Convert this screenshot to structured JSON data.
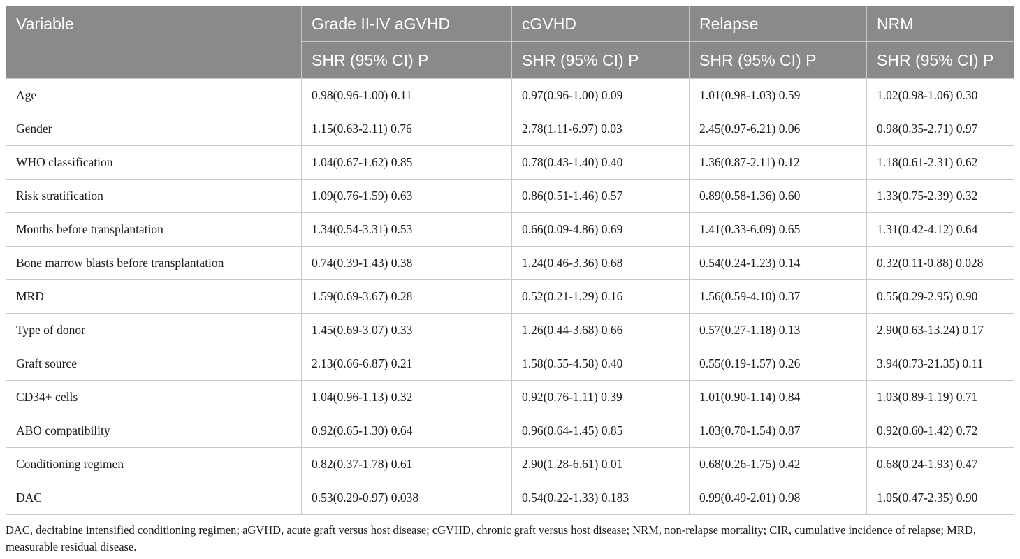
{
  "table": {
    "headers": {
      "variable": "Variable",
      "groups": [
        "Grade II-IV aGVHD",
        "cGVHD",
        "Relapse",
        "NRM"
      ],
      "sub": [
        "SHR (95% CI) P",
        "SHR (95% CI) P",
        "SHR (95% CI) P",
        "SHR (95% CI) P"
      ]
    },
    "rows": [
      [
        "Age",
        "0.98(0.96-1.00) 0.11",
        "0.97(0.96-1.00) 0.09",
        "1.01(0.98-1.03) 0.59",
        "1.02(0.98-1.06) 0.30"
      ],
      [
        "Gender",
        "1.15(0.63-2.11) 0.76",
        "2.78(1.11-6.97) 0.03",
        "2.45(0.97-6.21) 0.06",
        "0.98(0.35-2.71) 0.97"
      ],
      [
        "WHO classification",
        "1.04(0.67-1.62) 0.85",
        "0.78(0.43-1.40) 0.40",
        "1.36(0.87-2.11) 0.12",
        "1.18(0.61-2.31) 0.62"
      ],
      [
        "Risk stratification",
        "1.09(0.76-1.59) 0.63",
        "0.86(0.51-1.46) 0.57",
        "0.89(0.58-1.36) 0.60",
        "1.33(0.75-2.39) 0.32"
      ],
      [
        "Months before transplantation",
        "1.34(0.54-3.31) 0.53",
        "0.66(0.09-4.86) 0.69",
        "1.41(0.33-6.09) 0.65",
        "1.31(0.42-4.12) 0.64"
      ],
      [
        "Bone marrow blasts before transplantation",
        "0.74(0.39-1.43) 0.38",
        "1.24(0.46-3.36) 0.68",
        "0.54(0.24-1.23) 0.14",
        "0.32(0.11-0.88) 0.028"
      ],
      [
        "MRD",
        "1.59(0.69-3.67) 0.28",
        "0.52(0.21-1.29) 0.16",
        "1.56(0.59-4.10) 0.37",
        "0.55(0.29-2.95) 0.90"
      ],
      [
        "Type of donor",
        "1.45(0.69-3.07) 0.33",
        "1.26(0.44-3.68) 0.66",
        "0.57(0.27-1.18) 0.13",
        "2.90(0.63-13.24) 0.17"
      ],
      [
        "Graft source",
        "2.13(0.66-6.87) 0.21",
        "1.58(0.55-4.58) 0.40",
        "0.55(0.19-1.57) 0.26",
        "3.94(0.73-21.35) 0.11"
      ],
      [
        "CD34+ cells",
        "1.04(0.96-1.13) 0.32",
        "0.92(0.76-1.11) 0.39",
        "1.01(0.90-1.14) 0.84",
        "1.03(0.89-1.19) 0.71"
      ],
      [
        "ABO compatibility",
        "0.92(0.65-1.30) 0.64",
        "0.96(0.64-1.45) 0.85",
        "1.03(0.70-1.54) 0.87",
        "0.92(0.60-1.42) 0.72"
      ],
      [
        "Conditioning regimen",
        "0.82(0.37-1.78) 0.61",
        "2.90(1.28-6.61) 0.01",
        "0.68(0.26-1.75) 0.42",
        "0.68(0.24-1.93) 0.47"
      ],
      [
        "DAC",
        "0.53(0.29-0.97) 0.038",
        "0.54(0.22-1.33) 0.183",
        "0.99(0.49-2.01) 0.98",
        "1.05(0.47-2.35) 0.90"
      ]
    ]
  },
  "footnote": "DAC, decitabine intensified conditioning regimen; aGVHD, acute graft versus host disease; cGVHD, chronic graft versus host disease; NRM, non-relapse mortality; CIR, cumulative incidence of relapse; MRD, measurable residual disease.",
  "colors": {
    "header_bg": "#8a8a8a",
    "header_text": "#ffffff",
    "border": "#c9c9c9"
  }
}
